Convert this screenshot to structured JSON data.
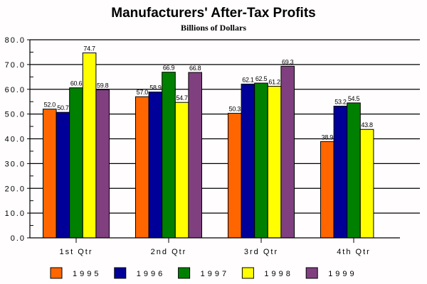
{
  "chart_data": {
    "type": "bar",
    "title": "Manufacturers' After-Tax Profits",
    "subtitle": "Billions of Dollars",
    "xlabel": "",
    "ylabel": "",
    "ylim": [
      0,
      80
    ],
    "yticks": [
      "0.0",
      "10.0",
      "20.0",
      "30.0",
      "40.0",
      "50.0",
      "60.0",
      "70.0",
      "80.0"
    ],
    "grid": true,
    "legend_position": "bottom",
    "categories": [
      "1st Qtr",
      "2nd Qtr",
      "3rd Qtr",
      "4th Qtr"
    ],
    "series": [
      {
        "name": "1995",
        "color": "#ff6600",
        "values": [
          52.0,
          57.0,
          50.3,
          38.9
        ],
        "labels": [
          "52.0",
          "57.0",
          "50.3",
          "38.9"
        ]
      },
      {
        "name": "1996",
        "color": "#000099",
        "values": [
          50.7,
          58.9,
          62.1,
          53.2
        ],
        "labels": [
          "50.7",
          "58.9",
          "62.1",
          "53.2"
        ]
      },
      {
        "name": "1997",
        "color": "#008000",
        "values": [
          60.6,
          66.9,
          62.5,
          54.5
        ],
        "labels": [
          "60.6",
          "66.9",
          "62.5",
          "54.5"
        ]
      },
      {
        "name": "1998",
        "color": "#ffff00",
        "values": [
          74.7,
          54.7,
          61.2,
          43.8
        ],
        "labels": [
          "74.7",
          "54.7",
          "61.2",
          "43.8"
        ]
      },
      {
        "name": "1999",
        "color": "#804080",
        "values": [
          59.8,
          66.8,
          69.3,
          null
        ],
        "labels": [
          "59.8",
          "66.8",
          "69.3",
          null
        ]
      }
    ]
  }
}
